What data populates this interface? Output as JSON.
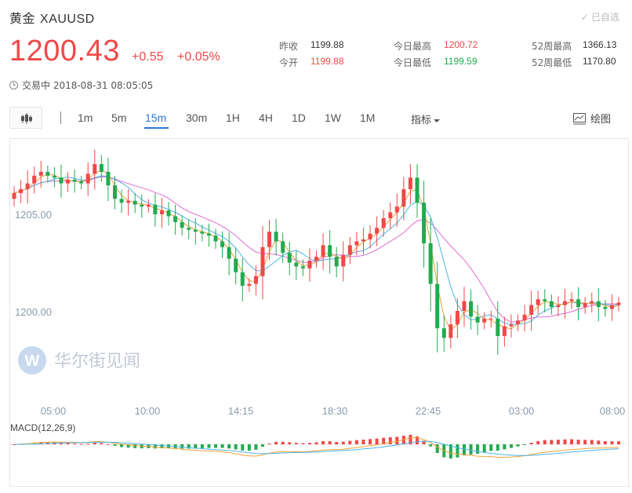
{
  "header": {
    "name": "黄金",
    "symbol": "XAUUSD",
    "watchlist_label": "已自选",
    "price": "1200.43",
    "change": "+0.55",
    "change_pct": "+0.05%",
    "status_text": "交易中 2018-08-31 08:05:05"
  },
  "stats": {
    "prev_close_label": "昨收",
    "prev_close": "1199.88",
    "open_label": "今开",
    "open": "1199.88",
    "day_high_label": "今日最高",
    "day_high": "1200.72",
    "day_low_label": "今日最低",
    "day_low": "1199.59",
    "w52_high_label": "52周最高",
    "w52_high": "1366.13",
    "w52_low_label": "52周最低",
    "w52_low": "1170.80"
  },
  "toolbar": {
    "timeframes": [
      "1m",
      "5m",
      "15m",
      "30m",
      "1H",
      "4H",
      "1D",
      "1W",
      "1M"
    ],
    "active_timeframe": "15m",
    "indicators_label": "指标",
    "draw_label": "绘图"
  },
  "chart_data": {
    "type": "candlestick",
    "y_ticks": [
      "1205.00",
      "1200.00"
    ],
    "x_ticks": [
      "05:00",
      "10:00",
      "14:15",
      "18:30",
      "22:45",
      "03:00",
      "08:00"
    ],
    "macd_label": "MACD(12,26,9)",
    "watermark_text": "华尔街见闻",
    "colors": {
      "up": "#f04848",
      "down": "#22aa4f",
      "ma_fast": "#f0a035",
      "ma_mid": "#4bb4e6",
      "ma_slow": "#e36ad8"
    },
    "closes": [
      1206.1,
      1206.3,
      1206.6,
      1207.0,
      1207.2,
      1207.0,
      1206.9,
      1206.6,
      1206.8,
      1206.7,
      1206.6,
      1207.1,
      1207.6,
      1207.2,
      1206.5,
      1205.8,
      1205.6,
      1205.7,
      1205.5,
      1205.4,
      1205.5,
      1205.0,
      1205.2,
      1204.9,
      1204.6,
      1204.3,
      1204.2,
      1204.1,
      1204.0,
      1203.9,
      1203.6,
      1203.3,
      1202.7,
      1202.0,
      1201.3,
      1201.4,
      1201.8,
      1203.3,
      1204.1,
      1203.6,
      1203.0,
      1202.5,
      1202.3,
      1202.2,
      1202.6,
      1202.8,
      1203.4,
      1202.8,
      1202.3,
      1202.9,
      1203.4,
      1203.6,
      1203.7,
      1204.0,
      1204.3,
      1204.8,
      1205.1,
      1205.4,
      1206.3,
      1206.9,
      1205.6,
      1203.5,
      1201.4,
      1199.1,
      1198.6,
      1199.3,
      1200.0,
      1200.5,
      1199.7,
      1199.4,
      1199.6,
      1199.6,
      1198.7,
      1199.2,
      1199.3,
      1199.5,
      1199.8,
      1200.3,
      1200.6,
      1200.5,
      1200.2,
      1200.3,
      1200.5,
      1200.6,
      1200.2,
      1200.4,
      1200.5,
      1200.2,
      1200.1,
      1200.3,
      1200.43
    ]
  }
}
